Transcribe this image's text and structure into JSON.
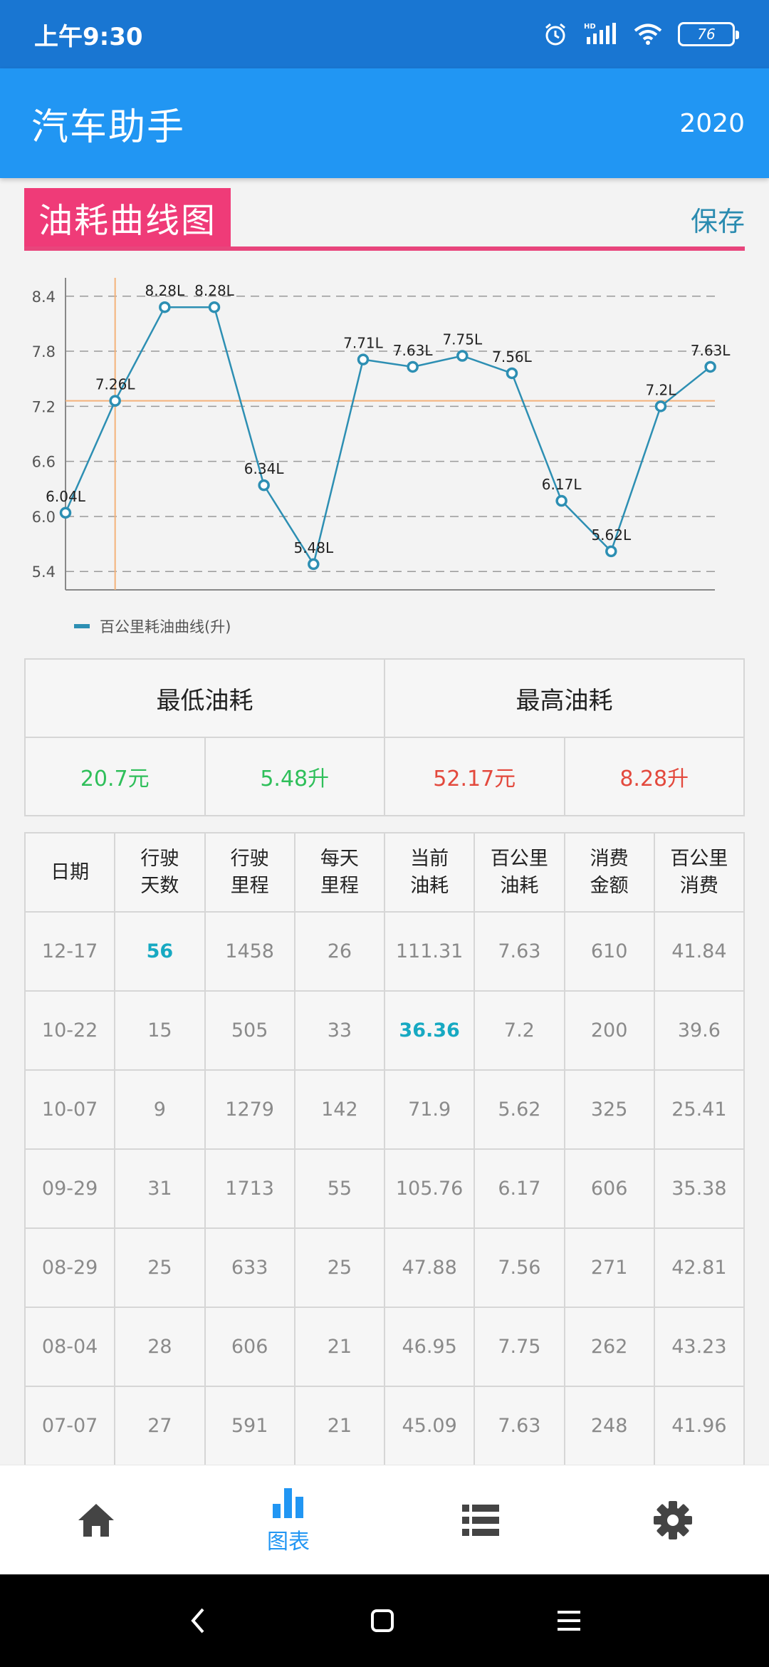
{
  "status_bar": {
    "time": "上午9:30",
    "battery": "76"
  },
  "app_bar": {
    "title": "汽车助手",
    "year": "2020"
  },
  "section": {
    "title": "油耗曲线图",
    "save_label": "保存"
  },
  "chart_data": {
    "type": "line",
    "ylim": [
      5.2,
      8.6
    ],
    "yticks": [
      "8.4",
      "7.8",
      "7.2",
      "6.6",
      "6.0",
      "5.4"
    ],
    "series": [
      {
        "name": "百公里耗油曲线(升)",
        "values": [
          6.04,
          7.26,
          8.28,
          8.28,
          6.34,
          5.48,
          7.71,
          7.63,
          7.75,
          7.56,
          6.17,
          5.62,
          7.2,
          7.63
        ],
        "labels": [
          "6.04L",
          "7.26L",
          "8.28L",
          "8.28L",
          "6.34L",
          "5.48L",
          "7.71L",
          "7.63L",
          "7.75L",
          "7.56L",
          "6.17L",
          "5.62L",
          "7.2L",
          "7.63L"
        ]
      }
    ],
    "reference_line_y": 7.26,
    "highlight_index": 1,
    "colors": {
      "line": "#2d8fb3",
      "reference": "#f4b27a",
      "grid": "#9a9a9a"
    },
    "grid": true,
    "legend": "bottom-left"
  },
  "summary": {
    "min_title": "最低油耗",
    "max_title": "最高油耗",
    "min_cost": "20.7元",
    "min_fuel": "5.48升",
    "max_cost": "52.17元",
    "max_fuel": "8.28升"
  },
  "table": {
    "headers": [
      "日期",
      "行驶\n天数",
      "行驶\n里程",
      "每天\n里程",
      "当前\n油耗",
      "百公里\n油耗",
      "消费\n金额",
      "百公里\n消费"
    ],
    "rows": [
      [
        "12-17",
        "56",
        "1458",
        "26",
        "111.31",
        "7.63",
        "610",
        "41.84"
      ],
      [
        "10-22",
        "15",
        "505",
        "33",
        "36.36",
        "7.2",
        "200",
        "39.6"
      ],
      [
        "10-07",
        "9",
        "1279",
        "142",
        "71.9",
        "5.62",
        "325",
        "25.41"
      ],
      [
        "09-29",
        "31",
        "1713",
        "55",
        "105.76",
        "6.17",
        "606",
        "35.38"
      ],
      [
        "08-29",
        "25",
        "633",
        "25",
        "47.88",
        "7.56",
        "271",
        "42.81"
      ],
      [
        "08-04",
        "28",
        "606",
        "21",
        "46.95",
        "7.75",
        "262",
        "43.23"
      ],
      [
        "07-07",
        "27",
        "591",
        "21",
        "45.09",
        "7.63",
        "248",
        "41.96"
      ]
    ],
    "highlights": [
      [
        0,
        1
      ],
      [
        1,
        4
      ]
    ]
  },
  "bottom_nav": {
    "items": [
      {
        "icon": "home-icon",
        "label": ""
      },
      {
        "icon": "bar-chart-icon",
        "label": "图表"
      },
      {
        "icon": "list-icon",
        "label": ""
      },
      {
        "icon": "gear-icon",
        "label": ""
      }
    ],
    "active_color": "#2196f3",
    "inactive_color": "#444444"
  }
}
